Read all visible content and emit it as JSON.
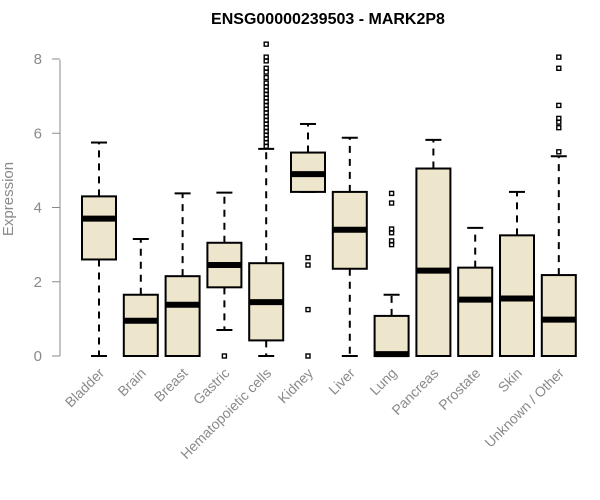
{
  "chart_data": {
    "type": "boxplot",
    "title": "ENSG00000239503 - MARK2P8",
    "xlabel": "",
    "ylabel": "Expression",
    "ylim": [
      0,
      8.4
    ],
    "yticks": [
      0,
      2,
      4,
      6,
      8
    ],
    "box_color": "#ede6cc",
    "categories": [
      "Bladder",
      "Brain",
      "Breast",
      "Gastric",
      "Hematopoietic cells",
      "Kidney",
      "Liver",
      "Lung",
      "Pancreas",
      "Prostate",
      "Skin",
      "Unknown / Other"
    ],
    "boxes": [
      {
        "name": "Bladder",
        "min": 0.0,
        "q1": 2.6,
        "median": 3.7,
        "q3": 4.3,
        "max": 5.75,
        "outliers": []
      },
      {
        "name": "Brain",
        "min": 0.0,
        "q1": 0.0,
        "median": 0.95,
        "q3": 1.65,
        "max": 3.15,
        "outliers": []
      },
      {
        "name": "Breast",
        "min": 0.0,
        "q1": 0.0,
        "median": 1.38,
        "q3": 2.15,
        "max": 4.38,
        "outliers": []
      },
      {
        "name": "Gastric",
        "min": 0.7,
        "q1": 1.85,
        "median": 2.45,
        "q3": 3.05,
        "max": 4.4,
        "outliers": [
          0.0
        ]
      },
      {
        "name": "Hematopoietic cells",
        "min": 0.0,
        "q1": 0.42,
        "median": 1.45,
        "q3": 2.5,
        "max": 5.58,
        "outliers": [
          5.65,
          5.75,
          5.85,
          5.95,
          6.05,
          6.15,
          6.25,
          6.35,
          6.45,
          6.55,
          6.65,
          6.75,
          6.85,
          6.95,
          7.05,
          7.15,
          7.25,
          7.35,
          7.5,
          7.65,
          7.75,
          7.95,
          8.05,
          8.4
        ]
      },
      {
        "name": "Kidney",
        "min": 4.42,
        "q1": 4.42,
        "median": 4.9,
        "q3": 5.48,
        "max": 6.25,
        "outliers": [
          2.65,
          2.45,
          1.25,
          0.0
        ]
      },
      {
        "name": "Liver",
        "min": 0.0,
        "q1": 2.35,
        "median": 3.4,
        "q3": 4.42,
        "max": 5.88,
        "outliers": []
      },
      {
        "name": "Lung",
        "min": 0.0,
        "q1": 0.0,
        "median": 0.05,
        "q3": 1.08,
        "max": 1.65,
        "outliers": [
          4.38,
          4.12,
          3.42,
          3.32,
          3.1,
          3.0
        ]
      },
      {
        "name": "Pancreas",
        "min": 0.0,
        "q1": 0.0,
        "median": 2.3,
        "q3": 5.05,
        "max": 5.82,
        "outliers": []
      },
      {
        "name": "Prostate",
        "min": 0.0,
        "q1": 0.0,
        "median": 1.52,
        "q3": 2.38,
        "max": 3.45,
        "outliers": []
      },
      {
        "name": "Skin",
        "min": 0.0,
        "q1": 0.0,
        "median": 1.55,
        "q3": 3.25,
        "max": 4.42,
        "outliers": []
      },
      {
        "name": "Unknown / Other",
        "min": 0.0,
        "q1": 0.0,
        "median": 0.98,
        "q3": 2.18,
        "max": 5.38,
        "outliers": [
          5.5,
          6.15,
          6.3,
          6.4,
          6.75,
          7.75,
          8.05
        ]
      }
    ]
  }
}
